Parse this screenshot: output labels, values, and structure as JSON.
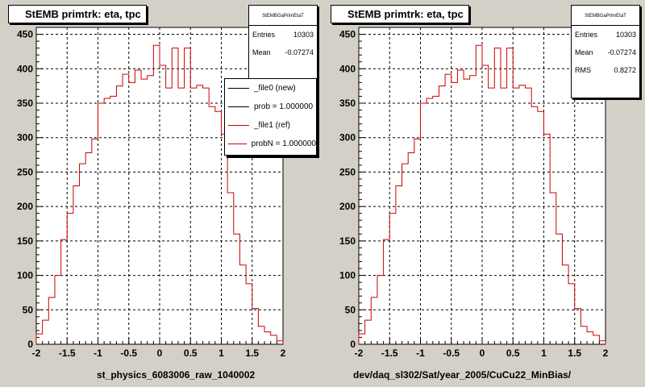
{
  "chart_data": [
    {
      "type": "histogram",
      "title": "StEMB primtrk: eta, tpc",
      "xlabel": "st_physics_6083006_raw_1040002",
      "xlim": [
        -2,
        2
      ],
      "ylim": [
        0,
        460
      ],
      "xticks": [
        -2,
        -1.5,
        -1,
        -0.5,
        0,
        0.5,
        1,
        1.5,
        2
      ],
      "xtick_labels": [
        "-2",
        "-1.5",
        "-1",
        "-0.5",
        "0",
        "0.5",
        "1",
        "1.5",
        "2"
      ],
      "yticks": [
        0,
        50,
        100,
        150,
        200,
        250,
        300,
        350,
        400,
        450
      ],
      "ytick_labels": [
        "0",
        "50",
        "100",
        "150",
        "200",
        "250",
        "300",
        "350",
        "400",
        "450"
      ],
      "grid": true,
      "bin_edges_start": -2.0,
      "bin_width": 0.1,
      "series": [
        {
          "color": "#cc0000",
          "values": [
            15,
            35,
            68,
            100,
            152,
            190,
            230,
            262,
            278,
            298,
            350,
            357,
            360,
            375,
            392,
            380,
            398,
            385,
            390,
            434,
            405,
            372,
            430,
            372,
            430,
            372,
            376,
            372,
            345,
            338,
            305,
            220,
            160,
            115,
            88,
            52,
            26,
            18,
            13,
            5
          ]
        }
      ],
      "stats": {
        "header": "StEMBGaPrimEtaT",
        "entries_label": "Entries",
        "entries": "10303",
        "mean_label": "Mean",
        "mean": "-0.07274"
      },
      "legend": {
        "placement": "top-right",
        "entries": [
          {
            "label": "_file0 (new)",
            "color": "#000000"
          },
          {
            "label": "prob = 1.000000",
            "color": "#000000"
          },
          {
            "label": "_file1 (ref)",
            "color": "#cc0000"
          },
          {
            "label": "probN = 1.000000",
            "color": "#cc0000"
          }
        ]
      }
    },
    {
      "type": "histogram",
      "title": "StEMB primtrk: eta, tpc",
      "xlabel": "dev/daq_sl302/Sat/year_2005/CuCu22_MinBias/",
      "xlim": [
        -2,
        2
      ],
      "ylim": [
        0,
        460
      ],
      "xticks": [
        -2,
        -1.5,
        -1,
        -0.5,
        0,
        0.5,
        1,
        1.5,
        2
      ],
      "xtick_labels": [
        "-2",
        "-1.5",
        "-1",
        "-0.5",
        "0",
        "0.5",
        "1",
        "1.5",
        "2"
      ],
      "yticks": [
        0,
        50,
        100,
        150,
        200,
        250,
        300,
        350,
        400,
        450
      ],
      "ytick_labels": [
        "0",
        "50",
        "100",
        "150",
        "200",
        "250",
        "300",
        "350",
        "400",
        "450"
      ],
      "grid": true,
      "bin_edges_start": -2.0,
      "bin_width": 0.1,
      "series": [
        {
          "color": "#cc0000",
          "values": [
            15,
            35,
            68,
            100,
            152,
            190,
            230,
            262,
            278,
            298,
            350,
            357,
            360,
            375,
            392,
            380,
            398,
            385,
            390,
            434,
            405,
            372,
            430,
            372,
            430,
            372,
            376,
            372,
            345,
            338,
            305,
            220,
            160,
            115,
            88,
            52,
            26,
            18,
            13,
            5
          ]
        }
      ],
      "stats": {
        "header": "StEMBGaPrimEtaT",
        "entries_label": "Entries",
        "entries": "10303",
        "mean_label": "Mean",
        "mean": "-0.07274",
        "rms_label": "RMS",
        "rms": "0.8272"
      }
    }
  ]
}
